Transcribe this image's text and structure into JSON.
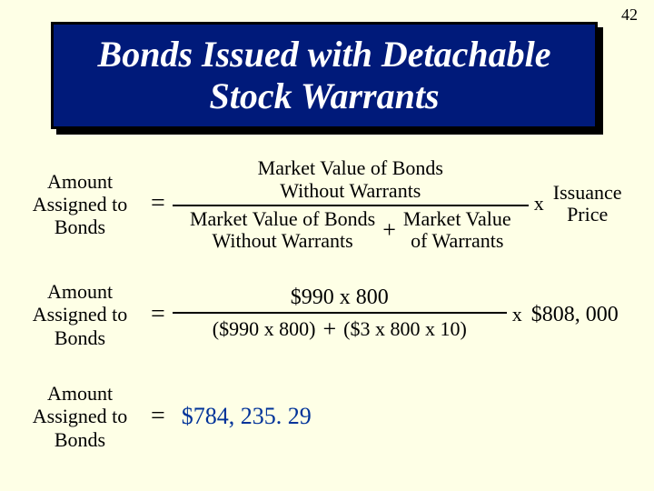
{
  "page_number": "42",
  "title": "Bonds Issued with Detachable Stock Warrants",
  "lhs_line1": "Amount",
  "lhs_line2": "Assigned to",
  "lhs_line3": "Bonds",
  "equals": "=",
  "plus": "+",
  "times": "x",
  "formula": {
    "numerator_line1": "Market Value of Bonds",
    "numerator_line2": "Without Warrants",
    "denom_left_line1": "Market Value of Bonds",
    "denom_left_line2": "Without Warrants",
    "denom_right_line1": "Market Value",
    "denom_right_line2": "of Warrants",
    "tail_line1": "Issuance",
    "tail_line2": "Price"
  },
  "numeric": {
    "numerator": "$990 x 800",
    "denom_left": "($990 x 800)",
    "denom_right": "($3 x 800 x 10)",
    "tail": "$808, 000"
  },
  "result": "$784, 235. 29",
  "colors": {
    "background": "#feffe6",
    "title_bg": "#001a7a",
    "title_text": "#ffffff",
    "result_text": "#003399"
  }
}
